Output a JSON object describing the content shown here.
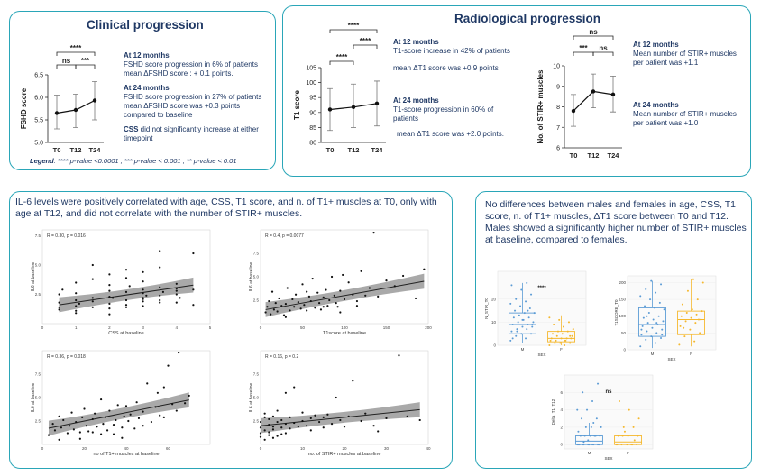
{
  "clinical": {
    "title": "Clinical progression",
    "m12_head": "At 12 months",
    "m12_l1": "FSHD score progression in 6% of patients",
    "m12_l2": "mean ΔFSHD score : + 0.1 points.",
    "m24_head": "At 24 months",
    "m24_l1": "FSHD score progression in 27% of patients",
    "m24_l2": "mean ΔFSHD score was +0.3 points compared to baseline",
    "css_head": "CSS",
    "css_rest": " did not significantly increase at either timepoint",
    "legend_label": "Legend",
    "legend_text": ": **** p-value <0.0001 ;  *** p-value < 0.001 ; ** p-value < 0.01"
  },
  "radiological": {
    "title": "Radiological progression",
    "t1_m12_head": "At 12 months",
    "t1_m12_l1": "T1-score increase in 42% of patients",
    "t1_m12_l2": "mean ΔT1 score was +0.9 points",
    "t1_m24_head": "At 24 months",
    "t1_m24_l1": "T1-score progression in 60% of patients",
    "t1_m24_l2": "mean ΔT1 score was +2.0 points.",
    "stir_m12_head": "At 12 months",
    "stir_m12_l1": "Mean number of STIR+ muscles per patient was +1.1",
    "stir_m24_head": "At 24 months",
    "stir_m24_l1": "Mean number of STIR+ muscles per patient was +1.0"
  },
  "il6": {
    "title": "IL-6 levels were positively correlated with age, CSS, T1 score, and n. of T1+ muscles at T0, only with age at T12, and did not correlate with the number of STIR+ muscles."
  },
  "sex": {
    "title": "No differences between males and females in age, CSS, T1 score, n. of T1+ muscles, ΔT1 score between T0 and T12. Males showed a significantly higher number of STIR+ muscles at baseline, compared to females."
  },
  "chart_data": [
    {
      "type": "line",
      "id": "fshd",
      "ylabel": "FSHD score",
      "categories": [
        "T0",
        "T12",
        "T24"
      ],
      "values": [
        5.65,
        5.72,
        5.93
      ],
      "err_low": [
        5.3,
        5.33,
        5.5
      ],
      "err_high": [
        6.05,
        6.07,
        6.35
      ],
      "ylim": [
        5.0,
        6.5
      ],
      "yticks": [
        "5.0",
        "5.5",
        "6.0",
        "6.5"
      ],
      "brackets": [
        {
          "from": "T0",
          "to": "T24",
          "label": "****"
        },
        {
          "from": "T0",
          "to": "T12",
          "label": "ns"
        },
        {
          "from": "T12",
          "to": "T24",
          "label": "***"
        }
      ]
    },
    {
      "type": "line",
      "id": "t1",
      "ylabel": "T1 score",
      "categories": [
        "T0",
        "T12",
        "T24"
      ],
      "values": [
        91,
        91.8,
        93
      ],
      "err_low": [
        84,
        85,
        85.5
      ],
      "err_high": [
        98,
        99.5,
        100.5
      ],
      "ylim": [
        80,
        105
      ],
      "yticks": [
        "80",
        "85",
        "90",
        "95",
        "100",
        "105"
      ],
      "brackets": [
        {
          "from": "T0",
          "to": "T24",
          "label": "****"
        },
        {
          "from": "T12",
          "to": "T24",
          "label": "****"
        },
        {
          "from": "T0",
          "to": "T12",
          "label": "****"
        }
      ]
    },
    {
      "type": "line",
      "id": "stir",
      "ylabel": "No. of STIR+ muscles",
      "categories": [
        "T0",
        "T12",
        "T24"
      ],
      "values": [
        7.8,
        8.75,
        8.6
      ],
      "err_low": [
        7.05,
        7.95,
        7.75
      ],
      "err_high": [
        8.6,
        9.6,
        9.5
      ],
      "ylim": [
        6,
        10
      ],
      "yticks": [
        "6",
        "7",
        "8",
        "9",
        "10"
      ],
      "brackets": [
        {
          "from": "T0",
          "to": "T24",
          "label": "ns"
        },
        {
          "from": "T0",
          "to": "T12",
          "label": "***"
        },
        {
          "from": "T12",
          "to": "T24",
          "label": "ns"
        }
      ]
    },
    {
      "type": "scatter",
      "id": "css",
      "xlabel": "CSS at baseline",
      "ylabel": "IL6 at baseline",
      "stat": "R = 0.30, p = 0.016",
      "xlim": [
        0,
        5
      ],
      "ylim": [
        0,
        8
      ],
      "xticks": [
        0,
        1,
        2,
        3,
        4,
        5
      ],
      "yticks": [
        2.5,
        5.0,
        7.5
      ],
      "fit": {
        "intercept": 1.4,
        "slope": 0.42
      },
      "x": [
        0.5,
        0.5,
        0.5,
        0.5,
        1,
        1,
        1,
        1,
        1,
        1,
        1.5,
        1.5,
        1.5,
        1.5,
        1.5,
        2,
        2,
        2,
        2,
        2,
        2,
        2,
        2.5,
        2.5,
        2.5,
        2.5,
        2.5,
        2.5,
        3,
        3,
        3,
        3,
        3,
        3,
        3,
        3,
        3.5,
        3.5,
        3.5,
        3.5,
        3.5,
        3.5,
        4,
        4,
        4,
        4,
        4,
        4.5,
        4.5,
        4.5,
        0.6,
        1.1,
        2.1,
        2.6,
        3.1,
        3.6,
        4.1
      ],
      "y": [
        1.2,
        1.8,
        2.5,
        1.4,
        1.5,
        2.0,
        2.6,
        3.5,
        1.1,
        0.9,
        1.4,
        2.2,
        3.8,
        1.9,
        5.0,
        1.3,
        2.3,
        2.8,
        1.7,
        3.3,
        0.8,
        4.2,
        1.4,
        2.0,
        2.7,
        3.9,
        1.6,
        4.6,
        1.5,
        2.2,
        2.9,
        3.6,
        4.4,
        1.9,
        2.6,
        2.1,
        1.8,
        2.4,
        3.1,
        4.8,
        2.0,
        6.2,
        2.5,
        3.0,
        3.4,
        1.8,
        2.8,
        1.6,
        6.0,
        2.9,
        2.9,
        1.7,
        2.2,
        3.2,
        2.4,
        2.7,
        2.2
      ]
    },
    {
      "type": "scatter",
      "id": "t1score",
      "xlabel": "T1score at baseline",
      "ylabel": "IL6 at baseline",
      "stat": "R = 0.4, p = 0.0077",
      "xlim": [
        0,
        200
      ],
      "ylim": [
        0,
        10
      ],
      "xticks": [
        0,
        50,
        100,
        150,
        200
      ],
      "yticks": [
        2.5,
        5.0,
        7.5
      ],
      "fit": {
        "intercept": 1.4,
        "slope": 0.016
      },
      "x": [
        6,
        8,
        10,
        12,
        14,
        16,
        18,
        20,
        22,
        25,
        28,
        30,
        32,
        35,
        38,
        40,
        42,
        45,
        48,
        50,
        52,
        55,
        58,
        60,
        62,
        65,
        68,
        70,
        72,
        75,
        78,
        80,
        82,
        85,
        88,
        90,
        92,
        95,
        98,
        100,
        105,
        110,
        115,
        120,
        125,
        130,
        135,
        140,
        150,
        160,
        170,
        185,
        195,
        30,
        55,
        75,
        95,
        115
      ],
      "y": [
        1.2,
        1.8,
        2.4,
        1.0,
        3.4,
        1.5,
        2.2,
        1.3,
        2.7,
        1.9,
        0.9,
        2.1,
        3.8,
        1.4,
        2.6,
        1.8,
        3.1,
        2.3,
        1.6,
        4.2,
        2.0,
        1.4,
        2.9,
        2.4,
        4.8,
        1.7,
        3.3,
        2.2,
        1.5,
        2.8,
        3.6,
        1.9,
        2.5,
        5.0,
        3.0,
        2.2,
        1.8,
        3.5,
        5.2,
        2.6,
        4.4,
        3.1,
        2.4,
        5.6,
        3.0,
        3.8,
        9.7,
        2.9,
        4.6,
        4.0,
        5.1,
        2.7,
        5.8,
        0.7,
        3.4,
        1.8,
        1.2,
        1.9
      ]
    },
    {
      "type": "scatter",
      "id": "t1muscles",
      "xlabel": "no of T1+ muscles at baseline",
      "ylabel": "IL6 at baseline",
      "stat": "R = 0.36, p = 0.018",
      "xlim": [
        0,
        80
      ],
      "ylim": [
        0,
        10
      ],
      "xticks": [
        0,
        20,
        40,
        60
      ],
      "yticks": [
        2.5,
        5.0,
        7.5
      ],
      "fit": {
        "intercept": 1.6,
        "slope": 0.045
      },
      "x": [
        3,
        5,
        6,
        8,
        9,
        10,
        12,
        13,
        14,
        15,
        16,
        18,
        19,
        20,
        21,
        22,
        24,
        25,
        26,
        28,
        29,
        30,
        31,
        32,
        34,
        35,
        36,
        38,
        39,
        40,
        41,
        42,
        44,
        45,
        46,
        48,
        50,
        52,
        54,
        55,
        56,
        58,
        60,
        62,
        64,
        65,
        68,
        70,
        8,
        18,
        28,
        38,
        48,
        58,
        24,
        34
      ],
      "y": [
        1.0,
        2.2,
        1.5,
        3.0,
        1.8,
        2.6,
        1.2,
        2.0,
        3.4,
        1.6,
        2.4,
        1.3,
        2.9,
        3.8,
        2.0,
        1.4,
        2.7,
        3.3,
        1.9,
        4.8,
        2.2,
        2.9,
        1.5,
        3.6,
        2.1,
        2.6,
        4.2,
        1.8,
        3.0,
        4.1,
        2.5,
        3.2,
        1.7,
        4.5,
        2.8,
        3.5,
        6.5,
        2.4,
        4.0,
        5.5,
        3.1,
        2.9,
        8.4,
        4.3,
        3.6,
        9.8,
        4.4,
        5.2,
        0.5,
        0.6,
        1.1,
        0.7,
        2.0,
        6.1,
        1.3,
        1.1
      ]
    },
    {
      "type": "scatter",
      "id": "stirmuscles",
      "xlabel": "no. of STIR+ muscles at baseline",
      "ylabel": "IL6 at baseline",
      "stat": "R = 0.16, p = 0.2",
      "xlim": [
        0,
        40
      ],
      "ylim": [
        0,
        10
      ],
      "xticks": [
        0,
        10,
        20,
        30,
        40
      ],
      "yticks": [
        2.5,
        5.0,
        7.5
      ],
      "fit": {
        "intercept": 2.0,
        "slope": 0.045
      },
      "x": [
        0,
        0,
        0,
        1,
        1,
        1,
        2,
        2,
        2,
        3,
        3,
        3,
        4,
        4,
        5,
        5,
        6,
        6,
        7,
        7,
        8,
        8,
        9,
        10,
        10,
        11,
        12,
        12,
        13,
        14,
        15,
        15,
        16,
        17,
        18,
        19,
        20,
        21,
        22,
        24,
        25,
        27,
        28,
        30,
        33,
        35,
        38,
        0,
        1,
        2,
        3,
        4,
        5,
        6
      ],
      "y": [
        1.2,
        2.4,
        1.8,
        2.9,
        1.5,
        3.3,
        2.1,
        1.3,
        2.7,
        1.9,
        3.0,
        1.6,
        2.4,
        3.6,
        1.8,
        2.6,
        2.2,
        5.5,
        1.7,
        2.9,
        2.3,
        6.1,
        1.9,
        2.5,
        3.4,
        2.0,
        2.8,
        1.5,
        3.1,
        2.4,
        1.8,
        2.9,
        3.2,
        2.2,
        5.0,
        2.6,
        1.9,
        3.0,
        6.8,
        2.5,
        3.3,
        2.0,
        1.4,
        2.8,
        9.5,
        3.0,
        2.6,
        0.8,
        0.5,
        1.0,
        0.7,
        0.9,
        1.1,
        1.2
      ]
    },
    {
      "type": "box",
      "id": "nstir",
      "ylabel": "N_STIR_T0",
      "xlabel": "SEX",
      "categories": [
        "M",
        "F"
      ],
      "colors": [
        "#5b9bd5",
        "#f5b82e"
      ],
      "ylim": [
        0,
        32
      ],
      "yticks": [
        0,
        10,
        20
      ],
      "boxes": [
        {
          "min": 1,
          "q1": 5,
          "median": 9,
          "q3": 14,
          "max": 27
        },
        {
          "min": 0,
          "q1": 1.5,
          "median": 3,
          "q3": 6,
          "max": 13
        }
      ],
      "annotation": "****",
      "points": [
        [
          2,
          3,
          4,
          5,
          5,
          6,
          7,
          7,
          8,
          8,
          9,
          9,
          10,
          10,
          11,
          12,
          12,
          13,
          14,
          14,
          15,
          16,
          17,
          18,
          19,
          20,
          22,
          24,
          26,
          27,
          6,
          9,
          11,
          3,
          15
        ],
        [
          0,
          0,
          1,
          1,
          1,
          2,
          2,
          2,
          3,
          3,
          3,
          3,
          4,
          4,
          5,
          5,
          6,
          6,
          7,
          8,
          9,
          10,
          11,
          12,
          2,
          1,
          4
        ]
      ]
    },
    {
      "type": "box",
      "id": "t1scoreT0",
      "ylabel": "T1SCORE_T0",
      "xlabel": "SEX",
      "categories": [
        "M",
        "F"
      ],
      "colors": [
        "#5b9bd5",
        "#f5b82e"
      ],
      "ylim": [
        0,
        220
      ],
      "yticks": [
        0,
        50,
        100,
        150,
        200
      ],
      "boxes": [
        {
          "min": 5,
          "q1": 40,
          "median": 75,
          "q3": 125,
          "max": 205
        },
        {
          "min": 10,
          "q1": 45,
          "median": 90,
          "q3": 115,
          "max": 210
        }
      ],
      "points": [
        [
          10,
          20,
          30,
          35,
          40,
          45,
          50,
          55,
          60,
          65,
          70,
          75,
          80,
          85,
          90,
          95,
          100,
          110,
          120,
          125,
          130,
          140,
          150,
          160,
          170,
          180,
          195,
          205,
          60,
          80,
          100,
          45
        ],
        [
          15,
          25,
          40,
          50,
          60,
          70,
          80,
          85,
          90,
          95,
          100,
          105,
          110,
          115,
          120,
          135,
          150,
          175,
          200,
          210,
          65,
          90
        ]
      ]
    },
    {
      "type": "box",
      "id": "deltaT1",
      "ylabel": "Delta_T1_T12",
      "xlabel": "SEX",
      "categories": [
        "M",
        "F"
      ],
      "colors": [
        "#5b9bd5",
        "#f5b82e"
      ],
      "ylim": [
        -0.5,
        8
      ],
      "yticks": [
        0,
        2,
        4,
        6
      ],
      "boxes": [
        {
          "min": 0,
          "q1": 0,
          "median": 0.4,
          "q3": 1,
          "max": 2.5
        },
        {
          "min": 0,
          "q1": 0,
          "median": 0.3,
          "q3": 1,
          "max": 2.5
        }
      ],
      "annotation": "ns",
      "points": [
        [
          0,
          0,
          0,
          0,
          0,
          0,
          0,
          0,
          0,
          0,
          0,
          1,
          1,
          1,
          1,
          1,
          1,
          2,
          2,
          2,
          3,
          3,
          4,
          4,
          5,
          6,
          7,
          0.5,
          1.5,
          2.5,
          0.3
        ],
        [
          0,
          0,
          0,
          0,
          0,
          0,
          0,
          1,
          1,
          1,
          1,
          2,
          2,
          3,
          4,
          5,
          0.5,
          1.5
        ]
      ]
    }
  ]
}
